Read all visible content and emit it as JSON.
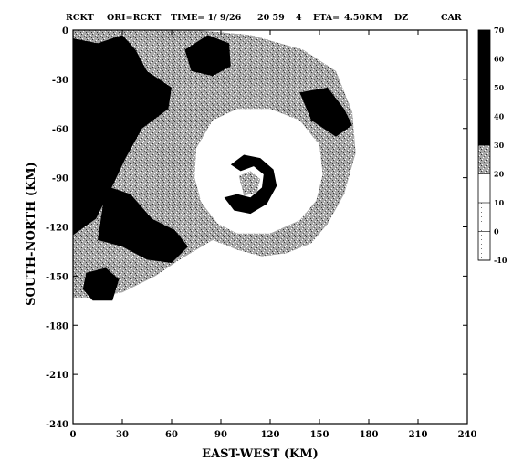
{
  "header": {
    "left": "RCKT",
    "ori": "ORI=RCKT",
    "time": "TIME= 1/ 9/26",
    "clock": "20 59",
    "level": "4",
    "eta": "ETA=",
    "height": "4.50KM",
    "field": "DZ",
    "project": "CAR"
  },
  "chart_data": {
    "type": "heatmap",
    "title": "",
    "xlabel": "EAST-WEST (KM)",
    "ylabel": "SOUTH-NORTH (KM)",
    "xlim": [
      0,
      240
    ],
    "ylim": [
      -240,
      0
    ],
    "x_ticks": [
      "0",
      "30",
      "60",
      "90",
      "120",
      "150",
      "180",
      "210",
      "240"
    ],
    "y_ticks": [
      "0",
      "-30",
      "-60",
      "-90",
      "-120",
      "-150",
      "-180",
      "-210",
      "-240"
    ],
    "colorbar": {
      "ticks": [
        "70",
        "60",
        "50",
        "40",
        "30",
        "20",
        "10",
        "0",
        "-10"
      ],
      "range": [
        -10,
        70
      ],
      "levels": [
        {
          "from": 30,
          "to": 70,
          "color": "#000000"
        },
        {
          "from": 20,
          "to": 30,
          "color": "#9a9a9a"
        },
        {
          "from": 10,
          "to": 20,
          "color": "#ffffff"
        },
        {
          "from": -10,
          "to": 10,
          "color": "#dedede"
        }
      ]
    },
    "echo_regions": [
      {
        "name": "outer-band",
        "level": 20,
        "points": [
          [
            0,
            0
          ],
          [
            75,
            0
          ],
          [
            108,
            -3
          ],
          [
            140,
            -12
          ],
          [
            160,
            -25
          ],
          [
            170,
            -50
          ],
          [
            172,
            -75
          ],
          [
            165,
            -100
          ],
          [
            155,
            -118
          ],
          [
            145,
            -130
          ],
          [
            130,
            -136
          ],
          [
            115,
            -138
          ],
          [
            100,
            -134
          ],
          [
            85,
            -128
          ],
          [
            65,
            -140
          ],
          [
            50,
            -150
          ],
          [
            30,
            -160
          ],
          [
            10,
            -163
          ],
          [
            0,
            -163
          ]
        ]
      },
      {
        "name": "clear-inner",
        "level": 10,
        "points": [
          [
            85,
            -55
          ],
          [
            100,
            -48
          ],
          [
            120,
            -48
          ],
          [
            138,
            -55
          ],
          [
            150,
            -70
          ],
          [
            152,
            -88
          ],
          [
            148,
            -104
          ],
          [
            138,
            -116
          ],
          [
            120,
            -124
          ],
          [
            100,
            -124
          ],
          [
            88,
            -118
          ],
          [
            78,
            -105
          ],
          [
            74,
            -90
          ],
          [
            75,
            -72
          ]
        ]
      },
      {
        "name": "nw-strong",
        "level": 40,
        "points": [
          [
            0,
            -5
          ],
          [
            15,
            -8
          ],
          [
            30,
            -3
          ],
          [
            38,
            -12
          ],
          [
            45,
            -25
          ],
          [
            60,
            -35
          ],
          [
            58,
            -48
          ],
          [
            42,
            -60
          ],
          [
            32,
            -78
          ],
          [
            24,
            -95
          ],
          [
            14,
            -115
          ],
          [
            0,
            -125
          ]
        ]
      },
      {
        "name": "mid-strong",
        "level": 40,
        "points": [
          [
            20,
            -95
          ],
          [
            35,
            -100
          ],
          [
            48,
            -115
          ],
          [
            62,
            -122
          ],
          [
            70,
            -132
          ],
          [
            60,
            -142
          ],
          [
            45,
            -140
          ],
          [
            30,
            -132
          ],
          [
            15,
            -128
          ]
        ]
      },
      {
        "name": "sw-strong",
        "level": 40,
        "points": [
          [
            8,
            -148
          ],
          [
            20,
            -145
          ],
          [
            28,
            -152
          ],
          [
            24,
            -165
          ],
          [
            12,
            -165
          ],
          [
            6,
            -158
          ]
        ]
      },
      {
        "name": "top-strong",
        "level": 40,
        "points": [
          [
            68,
            -12
          ],
          [
            82,
            -3
          ],
          [
            95,
            -8
          ],
          [
            96,
            -22
          ],
          [
            85,
            -28
          ],
          [
            72,
            -25
          ]
        ]
      },
      {
        "name": "east-strong",
        "level": 40,
        "points": [
          [
            138,
            -38
          ],
          [
            155,
            -35
          ],
          [
            165,
            -48
          ],
          [
            170,
            -58
          ],
          [
            160,
            -65
          ],
          [
            145,
            -55
          ]
        ]
      },
      {
        "name": "eye-ring",
        "level": 40,
        "points": [
          [
            96,
            -82
          ],
          [
            104,
            -76
          ],
          [
            114,
            -78
          ],
          [
            122,
            -85
          ],
          [
            124,
            -95
          ],
          [
            118,
            -106
          ],
          [
            108,
            -112
          ],
          [
            98,
            -110
          ],
          [
            92,
            -102
          ],
          [
            100,
            -100
          ],
          [
            108,
            -102
          ],
          [
            115,
            -96
          ],
          [
            116,
            -88
          ],
          [
            110,
            -83
          ],
          [
            102,
            -86
          ]
        ]
      },
      {
        "name": "eye-core",
        "level": 20,
        "points": [
          [
            101,
            -89
          ],
          [
            108,
            -86
          ],
          [
            114,
            -91
          ],
          [
            112,
            -99
          ],
          [
            104,
            -101
          ]
        ]
      }
    ]
  }
}
